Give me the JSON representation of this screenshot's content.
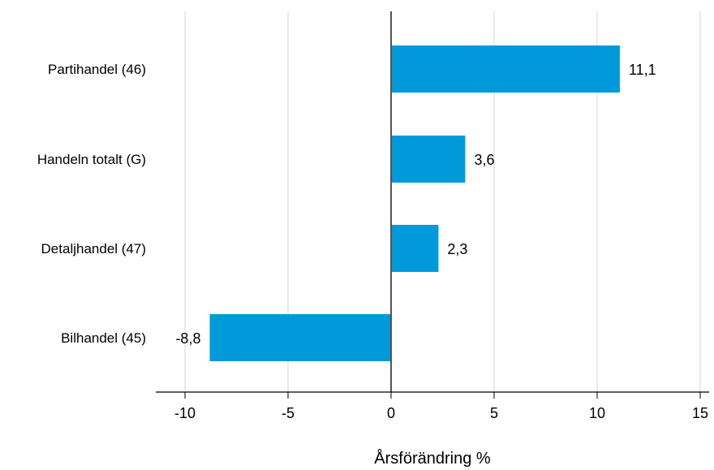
{
  "chart_data": {
    "type": "bar",
    "orientation": "horizontal",
    "title": "",
    "xlabel": "Årsförändring %",
    "ylabel": "",
    "xlim": [
      -11,
      15
    ],
    "xticks": [
      -10,
      -5,
      0,
      5,
      10,
      15
    ],
    "xtick_labels": [
      "-10",
      "-5",
      "0",
      "5",
      "10",
      "15"
    ],
    "grid": "vertical",
    "legend": "none",
    "bar_color": "#009ADA",
    "categories": [
      "Partihandel (46)",
      "Handeln totalt (G)",
      "Detaljhandel (47)",
      "Bilhandel (45)"
    ],
    "values": [
      11.1,
      3.6,
      2.3,
      -8.8
    ],
    "value_labels": [
      "11,1",
      "3,6",
      "2,3",
      "-8,8"
    ]
  }
}
